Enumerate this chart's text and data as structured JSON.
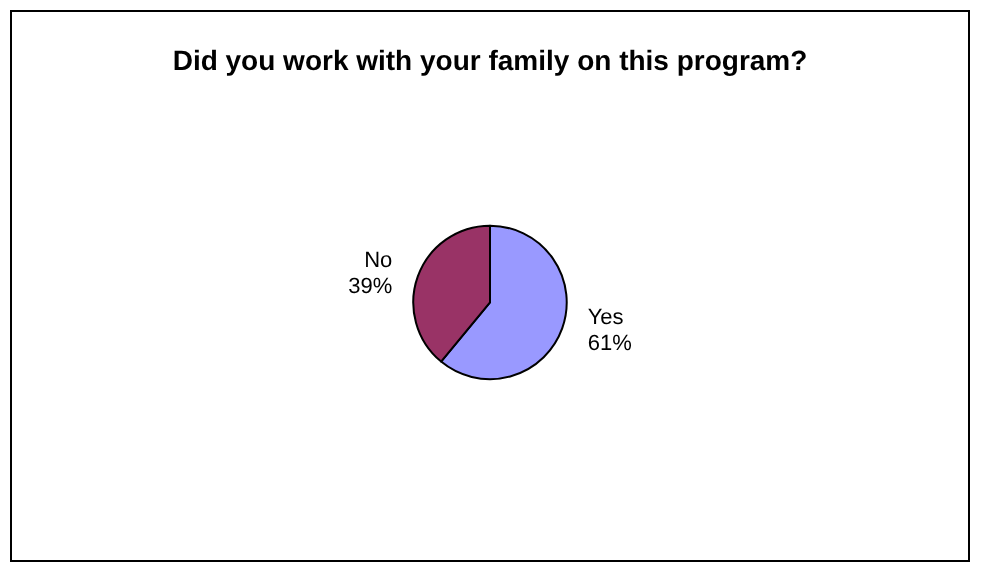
{
  "chart_data": {
    "type": "pie",
    "title": "Did you work with your family on this program?",
    "categories": [
      "Yes",
      "No"
    ],
    "values": [
      61,
      39
    ],
    "colors": [
      "#9999ff",
      "#993366"
    ],
    "value_labels": [
      "61%",
      "39%"
    ],
    "legend": false
  }
}
